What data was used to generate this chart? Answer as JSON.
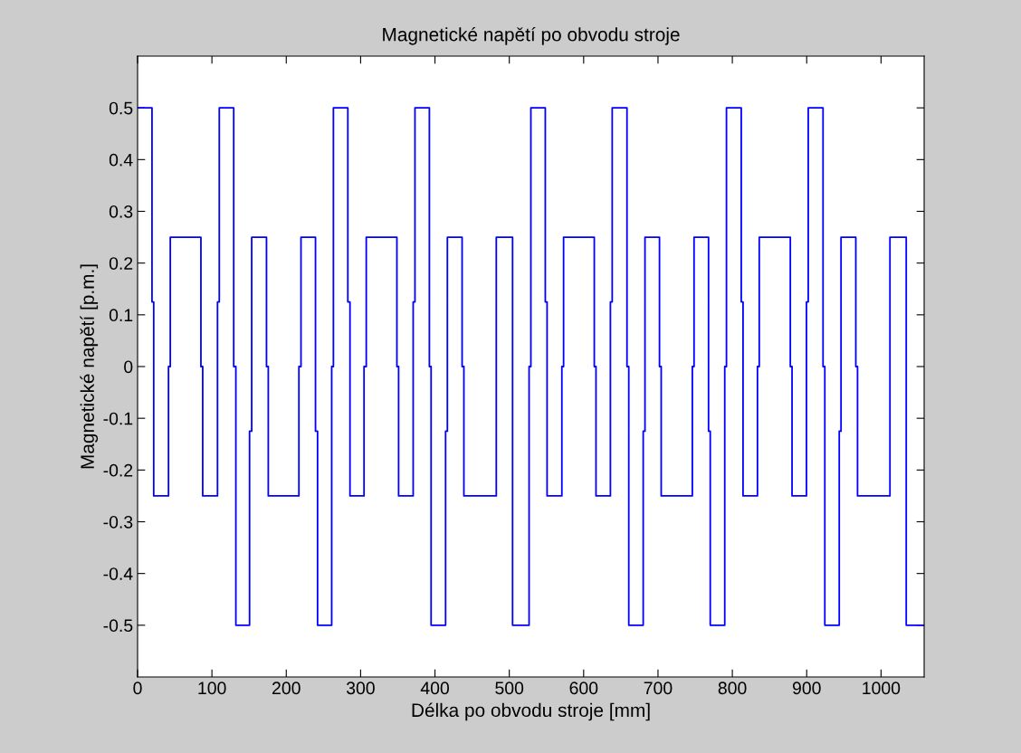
{
  "chart_data": {
    "type": "step",
    "title": "Magnetické napětí po obvodu stroje",
    "xlabel": "Délka po obvodu stroje [mm]",
    "ylabel": "Magnetické napětí [p.m.]",
    "x": [
      0,
      19.4,
      21.7,
      41.6,
      44.0,
      85.2,
      87.6,
      107.5,
      109.9,
      129.3,
      132.2,
      150.6,
      153.5,
      173.4,
      175.8,
      217.0,
      219.8,
      239.3,
      242.1,
      261.1,
      263.4,
      282.8,
      285.7,
      304.6,
      307.6,
      348.8,
      351.1,
      370.7,
      373.1,
      392.5,
      394.8,
      414.3,
      416.7,
      436.5,
      438.9,
      482.5,
      504.4,
      526.6,
      529.0,
      548.4,
      550.8,
      570.7,
      573.0,
      614.3,
      616.6,
      636.0,
      638.4,
      658.3,
      660.7,
      680.1,
      682.5,
      702.0,
      704.3,
      746.2,
      748.5,
      768.0,
      770.3,
      789.8,
      792.1,
      812.0,
      814.4,
      833.8,
      836.2,
      878.0,
      880.3,
      899.7,
      902.1,
      922.0,
      924.4,
      943.8,
      946.2,
      966.1,
      968.4,
      1012.0,
      1033.9,
      1058
    ],
    "series": [
      {
        "color": "#0000ff",
        "values": [
          0.5,
          0.125,
          -0.25,
          0,
          0.25,
          0,
          -0.25,
          0.125,
          0.5,
          0,
          -0.5,
          -0.125,
          0.25,
          0,
          -0.25,
          0,
          0.25,
          -0.125,
          -0.5,
          0,
          0.5,
          0.125,
          -0.25,
          0,
          0.25,
          0,
          -0.25,
          0.125,
          0.5,
          0,
          -0.5,
          -0.125,
          0.25,
          0,
          -0.25,
          0.25,
          -0.5,
          0,
          0.5,
          0.125,
          -0.25,
          0,
          0.25,
          0,
          -0.25,
          0.125,
          0.5,
          0,
          -0.5,
          -0.125,
          0.25,
          0,
          -0.25,
          0,
          0.25,
          -0.125,
          -0.5,
          0,
          0.5,
          0.125,
          -0.25,
          0,
          0.25,
          0,
          -0.25,
          0.125,
          0.5,
          0,
          -0.5,
          -0.125,
          0.25,
          0,
          -0.25,
          0.25,
          -0.5,
          -0.5
        ]
      }
    ],
    "xlim": [
      0,
      1058
    ],
    "ylim": [
      -0.6,
      0.6
    ],
    "xticks": [
      0,
      100,
      200,
      300,
      400,
      500,
      600,
      700,
      800,
      900,
      1000
    ],
    "yticks": [
      -0.5,
      -0.4,
      -0.3,
      -0.2,
      -0.1,
      0,
      0.1,
      0.2,
      0.3,
      0.4,
      0.5
    ],
    "grid": false,
    "legend": false
  }
}
